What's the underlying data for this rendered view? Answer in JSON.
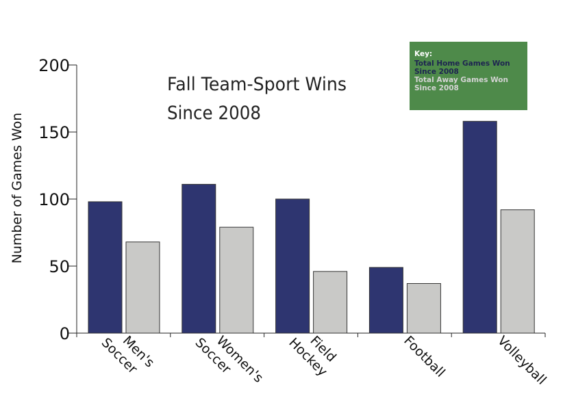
{
  "chart_data": {
    "type": "bar",
    "title": [
      "Fall Team-Sport Wins",
      "Since 2008"
    ],
    "ylabel": "Number of Games Won",
    "xlabel": "",
    "ylim": [
      0,
      200
    ],
    "yticks": [
      0,
      50,
      100,
      150,
      200
    ],
    "categories": [
      [
        "Men's",
        "Soccer"
      ],
      [
        "Women's",
        "Soccer"
      ],
      [
        "Field",
        "Hockey"
      ],
      [
        "Football"
      ],
      [
        "Volleyball"
      ]
    ],
    "series": [
      {
        "name": "Total Home Games Won Since 2008",
        "color": "#2e3570",
        "values": [
          98,
          111,
          100,
          49,
          158
        ]
      },
      {
        "name": "Total Away Games Won Since 2008",
        "color": "#c9c9c7",
        "values": [
          68,
          79,
          46,
          37,
          92
        ]
      }
    ],
    "legend": {
      "heading": "Key:",
      "placement": "top-right",
      "background": "#4e8a4a",
      "entries": [
        {
          "lines": [
            "Total Home Games Won",
            "Since 2008"
          ],
          "color": "#1d2450"
        },
        {
          "lines": [
            "Total Away Games Won",
            "Since 2008"
          ],
          "color": "#d4d4d4"
        }
      ]
    },
    "grid": false
  }
}
